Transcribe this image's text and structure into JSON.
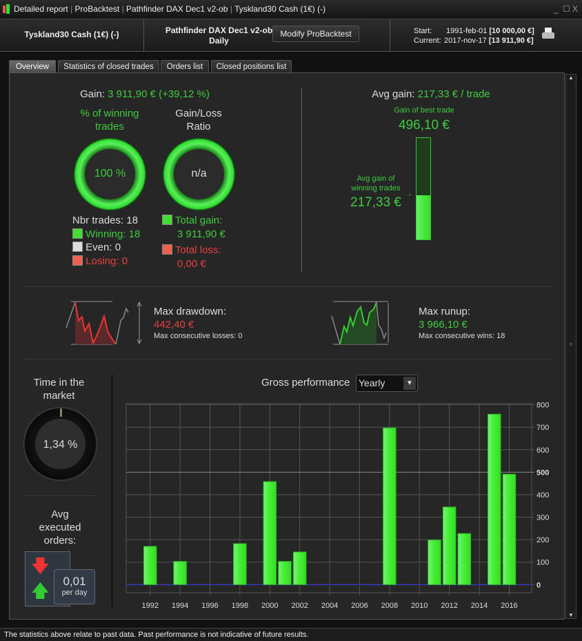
{
  "window": {
    "title_parts": [
      "Detailed report",
      "ProBacktest",
      "Pathfinder DAX Dec1 v2-ob",
      "Tyskland30 Cash (1€) (-)"
    ]
  },
  "header": {
    "instrument": "Tyskland30 Cash (1€) (-)",
    "strategy": "Pathfinder DAX Dec1 v2-ob",
    "timeframe": "Daily",
    "modify_label": "Modify ProBacktest",
    "start_label": "Start:",
    "start_date": "1991-feb-01",
    "start_value": "[10 000,00 €]",
    "current_label": "Current:",
    "current_date": "2017-nov-17",
    "current_value": "[13 911,90 €]"
  },
  "tabs": [
    {
      "label": "Overview",
      "active": true
    },
    {
      "label": "Statistics of closed trades"
    },
    {
      "label": "Orders list"
    },
    {
      "label": "Closed positions list"
    }
  ],
  "overview": {
    "gain_label": "Gain:",
    "gain_value": "3 911,90 € (+39,12 %)",
    "winning_title": "% of winning trades",
    "winning_value": "100 %",
    "winning_fraction": 1.0,
    "ratio_title": "Gain/Loss Ratio",
    "ratio_value": "n/a",
    "nbr_trades": "Nbr trades: 18",
    "winning": "Winning: 18",
    "even": "Even: 0",
    "losing": "Losing: 0",
    "total_gain_label": "Total gain:",
    "total_gain": "3 911,90 €",
    "total_loss_label": "Total loss:",
    "total_loss": "0,00 €",
    "avg_gain_label": "Avg gain:",
    "avg_gain_value": "217,33 € / trade",
    "best_trade_label": "Gain of best trade",
    "best_trade_value": "496,10 €",
    "avg_winning_label": "Avg gain of winning trades",
    "avg_winning_value": "217,33 €",
    "max_drawdown_label": "Max drawdown:",
    "max_drawdown_value": "442,40 €",
    "max_consec_losses": "Max consecutive losses: 0",
    "max_runup_label": "Max runup:",
    "max_runup_value": "3 966,10 €",
    "max_consec_wins": "Max consecutive wins: 18",
    "time_in_market_label": "Time in the market",
    "time_in_market_value": "1,34 %",
    "avg_orders_label": "Avg executed orders:",
    "avg_orders_value": "0,01",
    "avg_orders_unit": "per day",
    "gross_perf_label": "Gross performance",
    "period_select": "Yearly"
  },
  "colors": {
    "gain": "#3ecc3e",
    "loss": "#e84040",
    "bar": "#44ee33"
  },
  "chart_data": {
    "type": "bar",
    "title": "Gross performance",
    "x": [
      1992,
      1994,
      1998,
      2000,
      2001,
      2002,
      2008,
      2011,
      2012,
      2013,
      2015,
      2016
    ],
    "values": [
      170,
      103,
      182,
      458,
      103,
      145,
      697,
      198,
      345,
      227,
      758,
      491
    ],
    "xticks": [
      1992,
      1994,
      1996,
      1998,
      2000,
      2002,
      2004,
      2006,
      2008,
      2010,
      2012,
      2014,
      2016
    ],
    "yticks": [
      0,
      100,
      200,
      300,
      400,
      500,
      600,
      700,
      800
    ],
    "xlim": [
      1990.4,
      2017.5
    ],
    "ylim": [
      -36,
      805
    ],
    "grid": true,
    "yaxis_side": "right"
  },
  "footer": {
    "disclaimer": "The statistics above relate to past data. Past performance is not indicative of future results."
  }
}
